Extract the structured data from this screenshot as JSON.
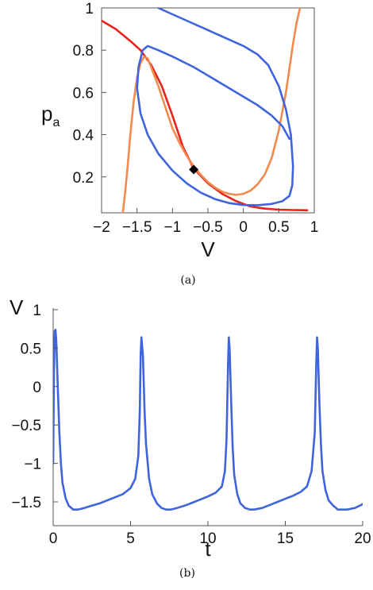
{
  "chart_data": [
    {
      "type": "line",
      "panel_caption": "(a)",
      "xlabel": "V",
      "ylabel": "p",
      "ylabel_sub": "a",
      "xlim": [
        -2,
        1
      ],
      "ylim": [
        0.03,
        1.0
      ],
      "xticks": [
        {
          "value": -2,
          "label": "−2"
        },
        {
          "value": -1.5,
          "label": "−1.5"
        },
        {
          "value": -1,
          "label": "−1"
        },
        {
          "value": -0.5,
          "label": "−0.5"
        },
        {
          "value": 0,
          "label": "0"
        },
        {
          "value": 0.5,
          "label": "0.5"
        },
        {
          "value": 1,
          "label": "1"
        }
      ],
      "yticks": [
        {
          "value": 0.2,
          "label": "0.2"
        },
        {
          "value": 0.4,
          "label": "0.4"
        },
        {
          "value": 0.6,
          "label": "0.6"
        },
        {
          "value": 0.8,
          "label": "0.8"
        },
        {
          "value": 1.0,
          "label": "1"
        }
      ],
      "grid": false,
      "series": [
        {
          "color": "#e8231c",
          "x": [
            -2.0,
            -1.8,
            -1.6,
            -1.45,
            -1.3,
            -1.15,
            -1.0,
            -0.85,
            -0.7,
            -0.5,
            -0.3,
            -0.1,
            0.1,
            0.3,
            0.5,
            0.7,
            0.9
          ],
          "y": [
            0.94,
            0.9,
            0.845,
            0.8,
            0.73,
            0.63,
            0.49,
            0.34,
            0.24,
            0.17,
            0.12,
            0.085,
            0.06,
            0.05,
            0.045,
            0.043,
            0.042
          ]
        },
        {
          "color": "#f28a4e",
          "x": [
            -1.7,
            -1.67,
            -1.63,
            -1.6,
            -1.55,
            -1.5,
            -1.45,
            -1.4,
            -1.35,
            -1.3,
            -1.2,
            -1.1,
            -1.0,
            -0.9,
            -0.8,
            -0.7,
            -0.6,
            -0.5,
            -0.4,
            -0.3,
            -0.2,
            -0.1,
            0.0,
            0.1,
            0.2,
            0.3,
            0.4,
            0.5,
            0.6,
            0.7,
            0.75,
            0.8
          ],
          "y": [
            0.03,
            0.12,
            0.26,
            0.38,
            0.55,
            0.67,
            0.74,
            0.77,
            0.76,
            0.72,
            0.63,
            0.53,
            0.43,
            0.36,
            0.3,
            0.25,
            0.21,
            0.175,
            0.15,
            0.13,
            0.12,
            0.115,
            0.12,
            0.135,
            0.165,
            0.21,
            0.29,
            0.42,
            0.6,
            0.83,
            0.93,
            1.0
          ]
        },
        {
          "color": "#3f64dc",
          "x": [
            -1.2,
            -1.0,
            -0.8,
            -0.6,
            -0.4,
            -0.2,
            0.0,
            0.2,
            0.35,
            0.5,
            0.6,
            0.67,
            0.7,
            0.69,
            0.65,
            0.55,
            0.4,
            0.2,
            0.0,
            -0.2,
            -0.4,
            -0.6,
            -0.8,
            -1.0,
            -1.2,
            -1.35,
            -1.45,
            -1.5,
            -1.48,
            -1.42,
            -1.35,
            -1.2,
            -1.0,
            -0.7,
            -0.4,
            -0.1,
            0.2,
            0.4,
            0.55,
            0.65
          ],
          "y": [
            1.0,
            0.97,
            0.94,
            0.91,
            0.88,
            0.85,
            0.82,
            0.78,
            0.73,
            0.63,
            0.52,
            0.4,
            0.25,
            0.16,
            0.11,
            0.085,
            0.072,
            0.066,
            0.067,
            0.076,
            0.095,
            0.125,
            0.17,
            0.23,
            0.31,
            0.4,
            0.5,
            0.62,
            0.72,
            0.8,
            0.82,
            0.8,
            0.77,
            0.72,
            0.66,
            0.6,
            0.54,
            0.49,
            0.44,
            0.38
          ]
        }
      ],
      "marker": {
        "x": -0.7,
        "y": 0.235,
        "shape": "diamond",
        "color": "#000000"
      }
    },
    {
      "type": "line",
      "panel_caption": "(b)",
      "xlabel": "t",
      "ylabel": "V",
      "xlim": [
        0,
        20
      ],
      "ylim": [
        -1.7,
        1.0
      ],
      "xticks": [
        {
          "value": 0,
          "label": "0"
        },
        {
          "value": 5,
          "label": "5"
        },
        {
          "value": 10,
          "label": "10"
        },
        {
          "value": 15,
          "label": "15"
        },
        {
          "value": 20,
          "label": "20"
        }
      ],
      "yticks": [
        {
          "value": -1.5,
          "label": "−1.5"
        },
        {
          "value": -1,
          "label": "−1"
        },
        {
          "value": -0.5,
          "label": "−0.5"
        },
        {
          "value": 0,
          "label": "0"
        },
        {
          "value": 0.5,
          "label": "0.5"
        },
        {
          "value": 1,
          "label": "1"
        }
      ],
      "grid": false,
      "series": [
        {
          "color": "#3f64dc",
          "x": [
            0.0,
            0.05,
            0.1,
            0.15,
            0.2,
            0.3,
            0.4,
            0.5,
            0.6,
            0.8,
            1.0,
            1.3,
            1.6,
            2.0,
            2.5,
            3.0,
            3.5,
            4.0,
            4.5,
            5.0,
            5.3,
            5.5,
            5.6,
            5.65,
            5.7,
            5.8,
            5.9,
            6.0,
            6.2,
            6.4,
            6.7,
            7.0,
            7.3,
            7.6,
            8.0,
            8.5,
            9.0,
            9.5,
            10.0,
            10.5,
            10.9,
            11.1,
            11.2,
            11.3,
            11.35,
            11.4,
            11.5,
            11.6,
            11.7,
            11.9,
            12.1,
            12.4,
            12.7,
            13.0,
            13.5,
            14.0,
            14.5,
            15.0,
            15.5,
            16.0,
            16.4,
            16.7,
            16.9,
            17.0,
            17.05,
            17.1,
            17.2,
            17.3,
            17.4,
            17.6,
            17.8,
            18.1,
            18.4,
            18.7,
            19.0,
            19.5,
            20.0
          ],
          "y": [
            -1.0,
            0.2,
            0.72,
            0.74,
            0.6,
            0.0,
            -0.6,
            -1.0,
            -1.25,
            -1.45,
            -1.55,
            -1.6,
            -1.6,
            -1.58,
            -1.55,
            -1.52,
            -1.48,
            -1.44,
            -1.4,
            -1.32,
            -1.2,
            -0.9,
            -0.3,
            0.4,
            0.64,
            0.4,
            -0.3,
            -0.75,
            -1.2,
            -1.4,
            -1.52,
            -1.58,
            -1.6,
            -1.6,
            -1.58,
            -1.55,
            -1.51,
            -1.47,
            -1.43,
            -1.38,
            -1.3,
            -1.1,
            -0.7,
            0.3,
            0.64,
            0.5,
            -0.2,
            -0.8,
            -1.15,
            -1.4,
            -1.52,
            -1.58,
            -1.6,
            -1.6,
            -1.58,
            -1.54,
            -1.5,
            -1.46,
            -1.42,
            -1.37,
            -1.3,
            -1.1,
            -0.6,
            0.3,
            0.64,
            0.5,
            -0.2,
            -0.75,
            -1.1,
            -1.35,
            -1.48,
            -1.55,
            -1.6,
            -1.6,
            -1.6,
            -1.58,
            -1.53
          ]
        }
      ]
    }
  ]
}
